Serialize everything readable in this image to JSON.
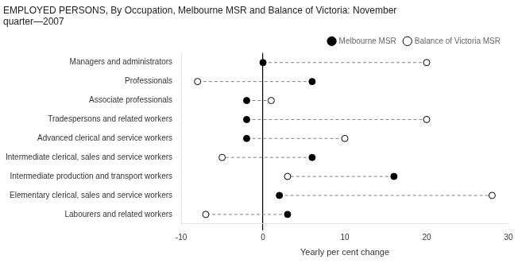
{
  "chart_data": {
    "type": "dumbbell",
    "title": [
      "EMPLOYED PERSONS, By Occupation, Melbourne MSR and Balance of Victoria: November",
      "quarter—2007"
    ],
    "categories": [
      "Managers and administrators",
      "Professionals",
      "Associate professionals",
      "Tradespersons and related workers",
      "Advanced clerical and service workers",
      "Intermediate clerical, sales and service workers",
      "Intermediate production and transport workers",
      "Elementary clerical, sales and service workers",
      "Labourers and related workers"
    ],
    "series": [
      {
        "name": "Melbourne MSR",
        "color": "black",
        "marker": "circle",
        "values": [
          0,
          6,
          -2,
          -2,
          -2,
          6,
          16,
          2,
          3
        ]
      },
      {
        "name": "Balance of Victoria MSR",
        "color": "black",
        "marker": "open_circle",
        "values": [
          20,
          -8,
          1,
          20,
          10,
          -5,
          3,
          28,
          -7
        ]
      }
    ],
    "xlabel": "Yearly per cent change",
    "xlim": [
      -10,
      30
    ],
    "xticks": [
      -10,
      0,
      10,
      20,
      30
    ],
    "grid": false,
    "legend": "upper right",
    "line_style": "dashed"
  }
}
